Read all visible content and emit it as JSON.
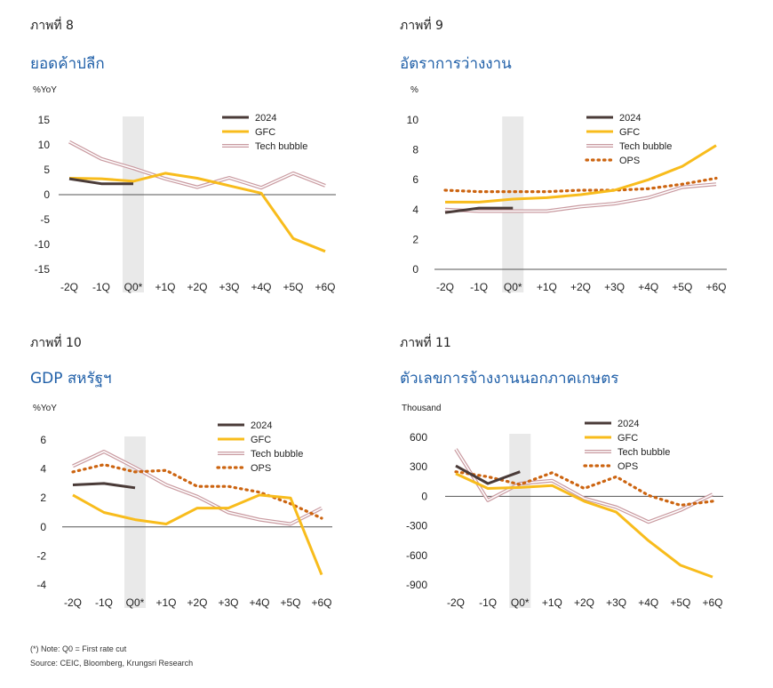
{
  "footer": {
    "note": "(*) Note: Q0 = First rate cut",
    "source": "Source: CEIC, Bloomberg, Krungsri Research"
  },
  "colors": {
    "2024": "#4a3b38",
    "GFC": "#f8bc1c",
    "Tech bubble": "#c99aa0",
    "OPS": "#cc6410",
    "shade": "#e9e9e9",
    "title": "#1f5fa8"
  },
  "panels": [
    {
      "fig": "ภาพที่ 8",
      "title": "ยอดค้าปลีก",
      "chart_data": {
        "type": "line",
        "unit": "%YoY",
        "categories": [
          "-2Q",
          "-1Q",
          "Q0*",
          "+1Q",
          "+2Q",
          "+3Q",
          "+4Q",
          "+5Q",
          "+6Q"
        ],
        "ylim": [
          -15,
          15
        ],
        "yticks": [
          15,
          10,
          5,
          0,
          -5,
          -10,
          -15
        ],
        "shaded_category": "Q0*",
        "grid": false,
        "legend": "top-right",
        "series": [
          {
            "name": "2024",
            "values": [
              3.2,
              2.2,
              2.2,
              null,
              null,
              null,
              null,
              null,
              null
            ]
          },
          {
            "name": "GFC",
            "values": [
              3.3,
              3.2,
              2.7,
              4.3,
              3.3,
              1.8,
              0.3,
              -8.8,
              -11.4
            ]
          },
          {
            "name": "Tech bubble",
            "values": [
              10.6,
              7.2,
              5.3,
              3.2,
              1.5,
              3.4,
              1.4,
              4.3,
              1.8
            ]
          }
        ]
      }
    },
    {
      "fig": "ภาพที่ 9",
      "title": "อัตราการว่างงาน",
      "chart_data": {
        "type": "line",
        "unit": "%",
        "categories": [
          "-2Q",
          "-1Q",
          "Q0*",
          "+1Q",
          "+2Q",
          "+3Q",
          "+4Q",
          "+5Q",
          "+6Q"
        ],
        "ylim": [
          0,
          10
        ],
        "yticks": [
          10,
          8,
          6,
          4,
          2,
          0
        ],
        "shaded_category": "Q0*",
        "grid": false,
        "legend": "top-left",
        "series": [
          {
            "name": "2024",
            "values": [
              3.8,
              4.1,
              4.1,
              null,
              null,
              null,
              null,
              null,
              null
            ]
          },
          {
            "name": "GFC",
            "values": [
              4.5,
              4.5,
              4.7,
              4.8,
              5.0,
              5.3,
              6.0,
              6.9,
              8.3
            ]
          },
          {
            "name": "Tech bubble",
            "values": [
              4.0,
              3.9,
              3.9,
              3.9,
              4.2,
              4.4,
              4.8,
              5.5,
              5.7
            ]
          },
          {
            "name": "OPS",
            "values": [
              5.3,
              5.2,
              5.2,
              5.2,
              5.3,
              5.3,
              5.4,
              5.7,
              6.1
            ]
          }
        ]
      }
    },
    {
      "fig": "ภาพที่ 10",
      "title": "GDP สหรัฐฯ",
      "chart_data": {
        "type": "line",
        "unit": "%YoY",
        "categories": [
          "-2Q",
          "-1Q",
          "Q0*",
          "+1Q",
          "+2Q",
          "+3Q",
          "+4Q",
          "+5Q",
          "+6Q"
        ],
        "ylim": [
          -4,
          6
        ],
        "yticks": [
          6,
          4,
          2,
          0,
          -2,
          -4
        ],
        "shaded_category": "Q0*",
        "grid": false,
        "legend": "top-right",
        "series": [
          {
            "name": "2024",
            "values": [
              2.9,
              3.0,
              2.7,
              null,
              null,
              null,
              null,
              null,
              null
            ]
          },
          {
            "name": "GFC",
            "values": [
              2.2,
              1.0,
              0.5,
              0.2,
              1.3,
              1.3,
              2.2,
              2.0,
              -3.3
            ]
          },
          {
            "name": "Tech bubble",
            "values": [
              4.2,
              5.2,
              4.1,
              2.9,
              2.1,
              1.0,
              0.5,
              0.2,
              1.3
            ]
          },
          {
            "name": "OPS",
            "values": [
              3.8,
              4.3,
              3.8,
              3.9,
              2.8,
              2.8,
              2.4,
              1.6,
              0.6
            ]
          }
        ]
      }
    },
    {
      "fig": "ภาพที่ 11",
      "title": "ตัวเลขการจ้างงานนอกภาคเกษตร",
      "chart_data": {
        "type": "line",
        "unit": "Thousand",
        "categories": [
          "-2Q",
          "-1Q",
          "Q0*",
          "+1Q",
          "+2Q",
          "+3Q",
          "+4Q",
          "+5Q",
          "+6Q"
        ],
        "ylim": [
          -900,
          600
        ],
        "yticks": [
          600,
          300,
          0,
          -300,
          -600,
          -900
        ],
        "shaded_category": "Q0*",
        "grid": false,
        "legend": "top-right",
        "series": [
          {
            "name": "2024",
            "values": [
              310,
              130,
              250,
              null,
              null,
              null,
              null,
              null,
              null
            ]
          },
          {
            "name": "GFC",
            "values": [
              230,
              80,
              90,
              110,
              -50,
              -160,
              -450,
              -700,
              -820
            ]
          },
          {
            "name": "Tech bubble",
            "values": [
              480,
              -40,
              130,
              160,
              -20,
              -110,
              -260,
              -140,
              20
            ]
          },
          {
            "name": "OPS",
            "values": [
              250,
              200,
              120,
              240,
              80,
              200,
              10,
              -90,
              -50
            ]
          }
        ]
      }
    }
  ]
}
